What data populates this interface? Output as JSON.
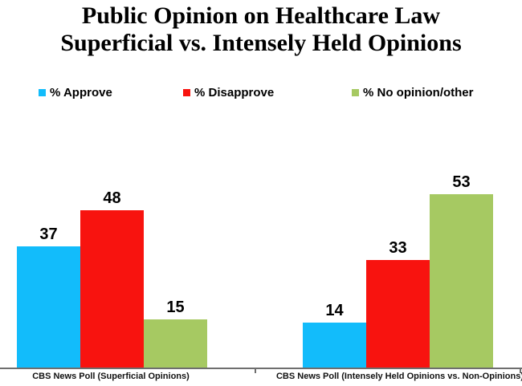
{
  "title": {
    "line1": "Public Opinion on Healthcare Law",
    "line2": "Superficial vs. Intensely Held Opinions"
  },
  "legend": {
    "items": [
      {
        "label": "% Approve",
        "color": "#12BCFB"
      },
      {
        "label": "% Disapprove",
        "color": "#F8130F"
      },
      {
        "label": "% No opinion/other",
        "color": "#A6C962"
      }
    ]
  },
  "chart_data": {
    "type": "bar",
    "title": "Public Opinion on Healthcare Law — Superficial vs. Intensely Held Opinions",
    "categories": [
      "CBS News Poll (Superficial Opinions)",
      "CBS News Poll (Intensely Held Opinions vs. Non-Opinions)"
    ],
    "series": [
      {
        "name": "% Approve",
        "color": "#12BCFB",
        "values": [
          37,
          14
        ]
      },
      {
        "name": "% Disapprove",
        "color": "#F8130F",
        "values": [
          48,
          33
        ]
      },
      {
        "name": "% No opinion/other",
        "color": "#A6C962",
        "values": [
          15,
          53
        ]
      }
    ],
    "value_labels_shown": true,
    "xlabel": "",
    "ylabel": "",
    "ylim": [
      0,
      55
    ],
    "grid": false,
    "y_axis_shown": false,
    "legend_position": "top",
    "axis_color": "#6e6e6e",
    "units": "percent"
  }
}
